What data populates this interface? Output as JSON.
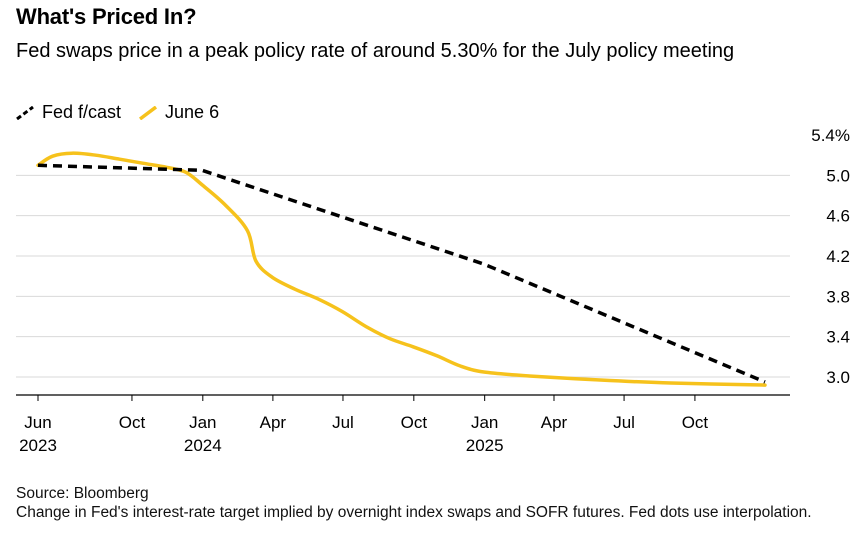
{
  "header": {
    "title": "What's Priced In?",
    "subtitle": "Fed swaps price in a peak policy rate of around 5.30% for the July policy meeting"
  },
  "footer": {
    "source": "Source: Bloomberg",
    "note": "Change in Fed's interest-rate target implied by overnight index swaps and SOFR futures. Fed dots use interpolation."
  },
  "chart_data": {
    "type": "line",
    "x_ticks": [
      {
        "date": "2023-06-01",
        "label": "Jun",
        "year": "2023"
      },
      {
        "date": "2023-10-01",
        "label": "Oct",
        "year": ""
      },
      {
        "date": "2024-01-01",
        "label": "Jan",
        "year": "2024"
      },
      {
        "date": "2024-04-01",
        "label": "Apr",
        "year": ""
      },
      {
        "date": "2024-07-01",
        "label": "Jul",
        "year": ""
      },
      {
        "date": "2024-10-01",
        "label": "Oct",
        "year": ""
      },
      {
        "date": "2025-01-01",
        "label": "Jan",
        "year": "2025"
      },
      {
        "date": "2025-04-01",
        "label": "Apr",
        "year": ""
      },
      {
        "date": "2025-07-01",
        "label": "Jul",
        "year": ""
      },
      {
        "date": "2025-10-01",
        "label": "Oct",
        "year": ""
      }
    ],
    "y_ticks": [
      "5.4%",
      "5.0",
      "4.6",
      "4.2",
      "3.8",
      "3.4",
      "3.0"
    ],
    "ylim": [
      2.8,
      5.6
    ],
    "xlim": [
      "2023-05-20",
      "2026-01-15"
    ],
    "grid": true,
    "legend_position": "top-left",
    "series": [
      {
        "name": "Fed f/cast",
        "color": "#000000",
        "dash": true,
        "points": [
          [
            "2023-06-01",
            5.1
          ],
          [
            "2023-12-31",
            5.05
          ],
          [
            "2024-12-31",
            4.12
          ],
          [
            "2025-12-31",
            2.95
          ]
        ]
      },
      {
        "name": "June 6",
        "color": "#F6C21C",
        "dash": false,
        "points": [
          [
            "2023-06-01",
            5.1
          ],
          [
            "2023-06-20",
            5.19
          ],
          [
            "2023-07-15",
            5.22
          ],
          [
            "2023-08-15",
            5.2
          ],
          [
            "2023-09-15",
            5.16
          ],
          [
            "2023-10-15",
            5.12
          ],
          [
            "2023-11-15",
            5.08
          ],
          [
            "2023-12-10",
            5.03
          ],
          [
            "2024-01-01",
            4.9
          ],
          [
            "2024-01-31",
            4.7
          ],
          [
            "2024-02-28",
            4.45
          ],
          [
            "2024-03-10",
            4.15
          ],
          [
            "2024-03-31",
            3.99
          ],
          [
            "2024-04-30",
            3.87
          ],
          [
            "2024-05-31",
            3.77
          ],
          [
            "2024-06-30",
            3.65
          ],
          [
            "2024-07-31",
            3.5
          ],
          [
            "2024-08-31",
            3.38
          ],
          [
            "2024-09-30",
            3.3
          ],
          [
            "2024-10-31",
            3.21
          ],
          [
            "2024-11-30",
            3.11
          ],
          [
            "2024-12-31",
            3.05
          ],
          [
            "2025-02-28",
            3.01
          ],
          [
            "2025-05-31",
            2.97
          ],
          [
            "2025-08-31",
            2.94
          ],
          [
            "2025-12-31",
            2.92
          ]
        ]
      }
    ]
  }
}
